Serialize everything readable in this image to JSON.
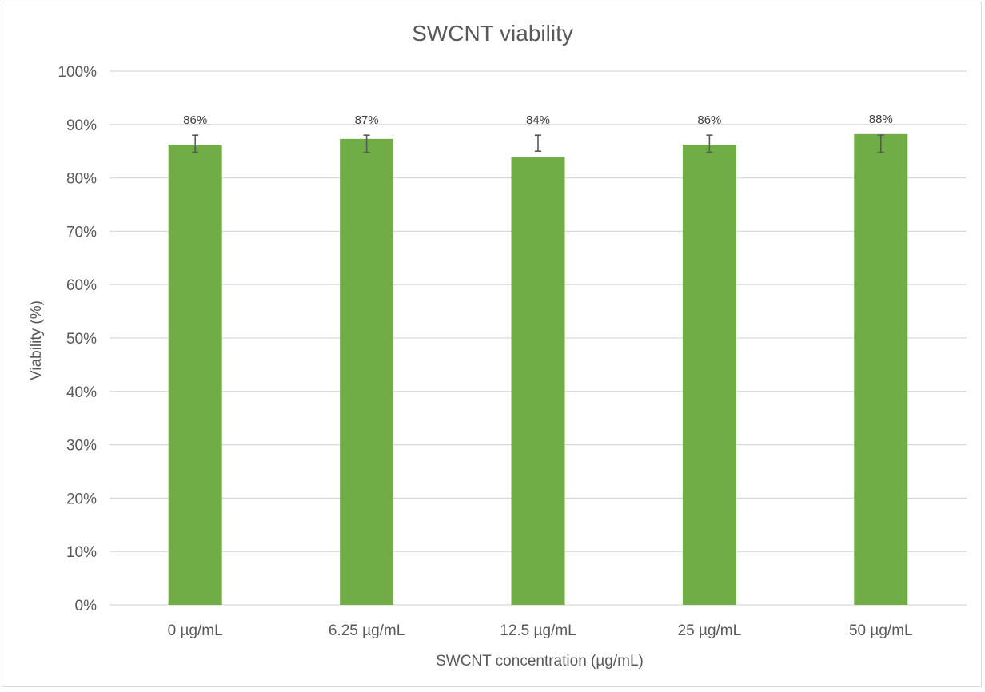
{
  "chart_data": {
    "type": "bar",
    "title": "SWCNT viability",
    "xlabel": "SWCNT concentration (µg/mL)",
    "ylabel": "Viability (%)",
    "categories": [
      "0 µg/mL",
      "6.25 µg/mL",
      "12.5 µg/mL",
      "25 µg/mL",
      "50 µg/mL"
    ],
    "series": [
      {
        "values": [
          86.2,
          87.3,
          83.9,
          86.2,
          88.2
        ],
        "data_labels": [
          "86%",
          "87%",
          "84%",
          "86%",
          "88%"
        ],
        "error_low": [
          84.8,
          84.8,
          85.0,
          84.8,
          84.8
        ],
        "error_high": [
          88.0,
          88.0,
          88.0,
          88.0,
          88.0
        ]
      }
    ],
    "ylim": [
      0,
      100
    ],
    "yticks": [
      0,
      10,
      20,
      30,
      40,
      50,
      60,
      70,
      80,
      90,
      100
    ],
    "ytick_labels": [
      "0%",
      "10%",
      "20%",
      "30%",
      "40%",
      "50%",
      "60%",
      "70%",
      "80%",
      "90%",
      "100%"
    ],
    "grid": "horizontal",
    "legend": "none",
    "colors": {
      "bar": "#70ad47",
      "error_bar": "#595959",
      "grid": "#d9d9d9",
      "text": "#595959"
    }
  }
}
